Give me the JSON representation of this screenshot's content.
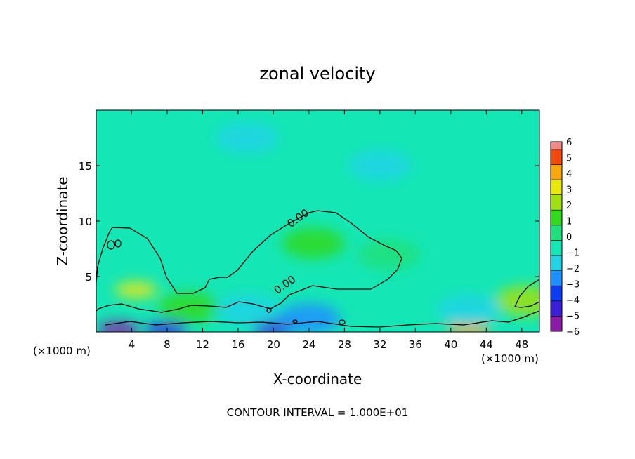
{
  "chart_data": {
    "type": "heatmap",
    "title": "zonal velocity",
    "xlabel": "X-coordinate",
    "ylabel": "Z-coordinate",
    "x_unit_left": "(×1000 m)",
    "x_unit_right": "(×1000 m)",
    "footer": "CONTOUR INTERVAL = 1.000E+01",
    "xlim": [
      0,
      50
    ],
    "ylim": [
      0,
      20
    ],
    "x_ticks": [
      4,
      8,
      12,
      16,
      20,
      24,
      28,
      32,
      36,
      40,
      44,
      48
    ],
    "x_tick_labels": [
      "4",
      "8",
      "12",
      "16",
      "20",
      "24",
      "28",
      "32",
      "36",
      "40",
      "44",
      "48"
    ],
    "y_ticks": [
      5,
      10,
      15
    ],
    "y_tick_labels": [
      "5",
      "10",
      "15"
    ],
    "contour_labels": [
      {
        "text": "0.00",
        "x": 23,
        "z": 10.0
      },
      {
        "text": "0.00",
        "x": 21.5,
        "z": 4.0
      }
    ],
    "colorbar": {
      "levels": [
        -6,
        -5,
        -4,
        -3,
        -2,
        -1,
        0,
        1,
        2,
        3,
        4,
        5,
        6
      ],
      "labels": [
        "6",
        "5",
        "4",
        "3",
        "2",
        "1",
        "0",
        "−1",
        "−2",
        "−3",
        "−4",
        "−5",
        "−6"
      ],
      "colors": [
        "#8b1aa6",
        "#3a1fd6",
        "#0a3cf0",
        "#1e90ff",
        "#22d3e6",
        "#15e6b5",
        "#1fe07a",
        "#30d91c",
        "#9ee012",
        "#e8e80a",
        "#f7a80c",
        "#f24a0c",
        "#f08a88"
      ]
    },
    "field_anomalies": [
      {
        "x": 4.5,
        "z": 3.8,
        "value": 3.2
      },
      {
        "x": 10.5,
        "z": 2.2,
        "value": 1.5
      },
      {
        "x": 24.5,
        "z": 8.0,
        "value": 1.2
      },
      {
        "x": 48.5,
        "z": 2.8,
        "value": 2.5
      },
      {
        "x": 42,
        "z": 0.3,
        "value": 4.0
      },
      {
        "x": 2.5,
        "z": 0.2,
        "value": -5.5
      },
      {
        "x": 8,
        "z": 0.3,
        "value": -5.0
      },
      {
        "x": 20,
        "z": 0.3,
        "value": -5.0
      },
      {
        "x": 24,
        "z": 1.2,
        "value": -3.0
      },
      {
        "x": 17,
        "z": 2.0,
        "value": -2.0
      },
      {
        "x": 42,
        "z": 2.0,
        "value": -2.0
      },
      {
        "x": 17,
        "z": 17.5,
        "value": -1.8
      },
      {
        "x": 32,
        "z": 15,
        "value": -1.6
      },
      {
        "x": 33,
        "z": 7,
        "value": 0.3
      }
    ]
  }
}
